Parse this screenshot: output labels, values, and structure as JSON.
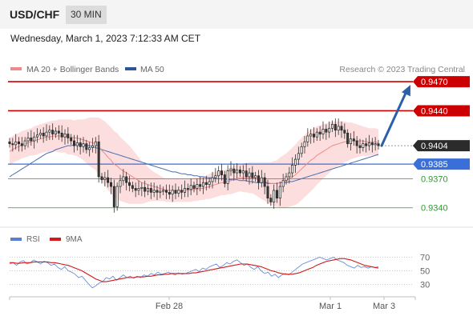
{
  "header": {
    "pair": "USD/CHF",
    "timeframe": "30 MIN"
  },
  "timestamp": "Wednesday, March 1, 2023 7:12:33 AM CET",
  "legend": {
    "ma20_label": "MA 20 + Bollinger Bands",
    "ma50_label": "MA 50",
    "credit": "Research © 2023 Trading Central",
    "rsi_label": "RSI",
    "rsi_ma_label": "9MA"
  },
  "colors": {
    "resistance": "#cc0000",
    "support": "#2e9b2e",
    "pivot": "#3a6fd8",
    "price_tag": "#2b2b2b",
    "bands": "#fbd3d3",
    "ma20": "#f08a8a",
    "ma50": "#4a6fb0",
    "arrow": "#2b5fa8",
    "candle_up": "#2a2a2a",
    "candle_down": "#3a3a3a",
    "rsi": "#6b8fd6",
    "rsi_ma": "#d11a1a"
  },
  "chart_data": [
    {
      "type": "candlestick",
      "title": "USD/CHF",
      "timeframe": "30 MIN",
      "x_tick_labels": [
        "Feb 28",
        "Mar 1",
        "Mar 3"
      ],
      "ylim": [
        0.932,
        0.9475
      ],
      "levels": [
        {
          "value": 0.947,
          "label": "0.9470",
          "kind": "resistance"
        },
        {
          "value": 0.944,
          "label": "0.9440",
          "kind": "resistance"
        },
        {
          "value": 0.9404,
          "label": "0.9404",
          "kind": "last_price"
        },
        {
          "value": 0.9385,
          "label": "0.9385",
          "kind": "pivot"
        },
        {
          "value": 0.937,
          "label": "0.9370",
          "kind": "support"
        },
        {
          "value": 0.934,
          "label": "0.9340",
          "kind": "support"
        }
      ],
      "closes": [
        0.9406,
        0.9405,
        0.9408,
        0.9406,
        0.9404,
        0.9409,
        0.9412,
        0.9409,
        0.9413,
        0.9415,
        0.9417,
        0.9414,
        0.9418,
        0.942,
        0.9416,
        0.9419,
        0.9417,
        0.9413,
        0.9416,
        0.9412,
        0.9409,
        0.9404,
        0.9407,
        0.9403,
        0.9406,
        0.94,
        0.9402,
        0.9404,
        0.9408,
        0.9372,
        0.9369,
        0.9371,
        0.9366,
        0.9362,
        0.9341,
        0.9362,
        0.9368,
        0.9372,
        0.9366,
        0.9363,
        0.936,
        0.9358,
        0.936,
        0.9361,
        0.9357,
        0.936,
        0.9356,
        0.9358,
        0.9356,
        0.9357,
        0.9358,
        0.9356,
        0.9354,
        0.9358,
        0.9355,
        0.9358,
        0.9356,
        0.936,
        0.9359,
        0.9363,
        0.936,
        0.9364,
        0.9362,
        0.9366,
        0.9364,
        0.9367,
        0.9371,
        0.9373,
        0.9378,
        0.9374,
        0.9365,
        0.9378,
        0.938,
        0.9376,
        0.9379,
        0.9376,
        0.9378,
        0.9372,
        0.9376,
        0.9371,
        0.9373,
        0.9366,
        0.9371,
        0.9362,
        0.935,
        0.9346,
        0.9358,
        0.935,
        0.9362,
        0.9368,
        0.9372,
        0.9376,
        0.9384,
        0.939,
        0.9396,
        0.9403,
        0.9408,
        0.9414,
        0.9416,
        0.9413,
        0.9418,
        0.9416,
        0.9421,
        0.9418,
        0.9422,
        0.9426,
        0.942,
        0.9424,
        0.942,
        0.9417,
        0.9406,
        0.9411,
        0.9409,
        0.9404,
        0.9402,
        0.9406,
        0.9404,
        0.9407,
        0.9405,
        0.9406,
        0.9404
      ],
      "ma20": [
        0.9398,
        0.94,
        0.9402,
        0.9403,
        0.9405,
        0.9406,
        0.9407,
        0.9408,
        0.9409,
        0.941,
        0.9411,
        0.9412,
        0.9413,
        0.9413,
        0.9414,
        0.9414,
        0.9414,
        0.9414,
        0.9414,
        0.9413,
        0.9413,
        0.9412,
        0.9412,
        0.9411,
        0.941,
        0.9409,
        0.9408,
        0.9407,
        0.9406,
        0.9403,
        0.9399,
        0.9396,
        0.9392,
        0.9389,
        0.9385,
        0.9383,
        0.938,
        0.9378,
        0.9376,
        0.9374,
        0.9372,
        0.937,
        0.9368,
        0.9366,
        0.9365,
        0.9364,
        0.9363,
        0.9362,
        0.9361,
        0.936,
        0.9359,
        0.9358,
        0.9358,
        0.9358,
        0.9358,
        0.9358,
        0.9358,
        0.9358,
        0.9358,
        0.9358,
        0.9359,
        0.9359,
        0.936,
        0.936,
        0.9361,
        0.9362,
        0.9363,
        0.9364,
        0.9365,
        0.9366,
        0.9366,
        0.9367,
        0.9368,
        0.9369,
        0.937,
        0.9371,
        0.9371,
        0.9371,
        0.9371,
        0.9371,
        0.937,
        0.9369,
        0.9368,
        0.9367,
        0.9366,
        0.9365,
        0.9365,
        0.9365,
        0.9366,
        0.9367,
        0.9368,
        0.937,
        0.9372,
        0.9374,
        0.9377,
        0.938,
        0.9383,
        0.9386,
        0.9389,
        0.9391,
        0.9394,
        0.9396,
        0.9398,
        0.94,
        0.9402,
        0.9404,
        0.9405,
        0.9406,
        0.9407,
        0.9408,
        0.9408,
        0.9409,
        0.9409,
        0.9409,
        0.9409,
        0.9409,
        0.9408,
        0.9408,
        0.9408,
        0.9408,
        0.9407
      ],
      "ma50": [
        0.9372,
        0.9374,
        0.9376,
        0.9378,
        0.938,
        0.9382,
        0.9384,
        0.9386,
        0.9388,
        0.939,
        0.9392,
        0.9394,
        0.9396,
        0.9397,
        0.9398,
        0.94,
        0.9401,
        0.9402,
        0.9403,
        0.9404,
        0.9404,
        0.9405,
        0.9405,
        0.9405,
        0.9405,
        0.9404,
        0.9404,
        0.9403,
        0.9402,
        0.9401,
        0.94,
        0.9399,
        0.9398,
        0.9397,
        0.9396,
        0.9395,
        0.9394,
        0.9393,
        0.9392,
        0.9391,
        0.939,
        0.9389,
        0.9388,
        0.9387,
        0.9386,
        0.9385,
        0.9384,
        0.9383,
        0.9382,
        0.9381,
        0.938,
        0.9379,
        0.9378,
        0.9377,
        0.9377,
        0.9376,
        0.9375,
        0.9375,
        0.9374,
        0.9374,
        0.9373,
        0.9373,
        0.9372,
        0.9372,
        0.9371,
        0.9371,
        0.9371,
        0.937,
        0.937,
        0.937,
        0.937,
        0.9369,
        0.9369,
        0.9369,
        0.9369,
        0.9368,
        0.9368,
        0.9368,
        0.9367,
        0.9367,
        0.9366,
        0.9366,
        0.9366,
        0.9366,
        0.9365,
        0.9365,
        0.9365,
        0.9365,
        0.9366,
        0.9366,
        0.9366,
        0.9367,
        0.9367,
        0.9368,
        0.9369,
        0.937,
        0.9371,
        0.9372,
        0.9373,
        0.9374,
        0.9375,
        0.9376,
        0.9377,
        0.9378,
        0.9379,
        0.938,
        0.9381,
        0.9382,
        0.9383,
        0.9384,
        0.9385,
        0.9386,
        0.9387,
        0.9388,
        0.9389,
        0.939,
        0.9391,
        0.9392,
        0.9393,
        0.9394,
        0.9395
      ],
      "band_half_width": [
        0.0014,
        0.0014,
        0.0014,
        0.0014,
        0.0014,
        0.0014,
        0.0014,
        0.0014,
        0.0015,
        0.0015,
        0.0015,
        0.0015,
        0.0015,
        0.0016,
        0.0016,
        0.0016,
        0.0017,
        0.0017,
        0.0017,
        0.0018,
        0.0018,
        0.0018,
        0.0019,
        0.002,
        0.0021,
        0.0023,
        0.0025,
        0.0026,
        0.0027,
        0.003,
        0.0032,
        0.0033,
        0.0034,
        0.0034,
        0.0034,
        0.0034,
        0.0033,
        0.0032,
        0.0031,
        0.003,
        0.0028,
        0.0026,
        0.0024,
        0.0022,
        0.002,
        0.0018,
        0.0016,
        0.0015,
        0.0014,
        0.0013,
        0.0012,
        0.0012,
        0.0012,
        0.0012,
        0.0012,
        0.0012,
        0.0012,
        0.0012,
        0.0012,
        0.0012,
        0.0012,
        0.0012,
        0.0012,
        0.0012,
        0.0012,
        0.0013,
        0.0013,
        0.0013,
        0.0013,
        0.0013,
        0.0013,
        0.0013,
        0.0014,
        0.0014,
        0.0014,
        0.0014,
        0.0015,
        0.0015,
        0.0016,
        0.0016,
        0.0017,
        0.0018,
        0.0019,
        0.002,
        0.0021,
        0.0022,
        0.0023,
        0.0024,
        0.0026,
        0.0027,
        0.0028,
        0.0029,
        0.003,
        0.0031,
        0.0032,
        0.0032,
        0.0032,
        0.0032,
        0.0032,
        0.0031,
        0.003,
        0.0029,
        0.0028,
        0.0027,
        0.0026,
        0.0025,
        0.0024,
        0.0023,
        0.0022,
        0.0021,
        0.002,
        0.0019,
        0.0018,
        0.0017,
        0.0016,
        0.0015,
        0.0015,
        0.0014,
        0.0014,
        0.0014,
        0.0014
      ],
      "projection": {
        "from": 0.9404,
        "to": 0.947
      }
    },
    {
      "type": "line",
      "title": "RSI",
      "ylim": [
        20,
        80
      ],
      "y_ticks": [
        70,
        50,
        30
      ],
      "series": [
        {
          "name": "RSI",
          "values": [
            60,
            62,
            58,
            63,
            65,
            60,
            62,
            66,
            63,
            60,
            64,
            62,
            58,
            60,
            55,
            52,
            56,
            50,
            48,
            45,
            40,
            42,
            36,
            30,
            25,
            28,
            32,
            34,
            40,
            38,
            42,
            36,
            40,
            44,
            40,
            42,
            39,
            42,
            40,
            44,
            42,
            46,
            44,
            48,
            45,
            46,
            48,
            46,
            44,
            47,
            45,
            46,
            48,
            50,
            52,
            49,
            54,
            52,
            56,
            58,
            60,
            55,
            58,
            62,
            60,
            64,
            66,
            62,
            58,
            60,
            55,
            52,
            56,
            50,
            46,
            48,
            42,
            45,
            40,
            44,
            46,
            44,
            48,
            52,
            56,
            60,
            62,
            64,
            66,
            68,
            70,
            68,
            66,
            68,
            70,
            66,
            64,
            62,
            58,
            56,
            54,
            58,
            55,
            56,
            54,
            56,
            55,
            56
          ]
        },
        {
          "name": "9MA",
          "values": [
            62,
            62,
            61,
            61,
            62,
            62,
            62,
            63,
            63,
            63,
            63,
            63,
            62,
            62,
            61,
            60,
            59,
            58,
            56,
            54,
            52,
            50,
            47,
            44,
            41,
            38,
            36,
            34,
            34,
            35,
            36,
            37,
            38,
            39,
            40,
            40,
            40,
            41,
            41,
            41,
            42,
            42,
            43,
            44,
            44,
            45,
            45,
            46,
            46,
            46,
            46,
            46,
            46,
            47,
            47,
            48,
            49,
            50,
            51,
            52,
            53,
            54,
            55,
            56,
            57,
            58,
            59,
            60,
            60,
            60,
            59,
            58,
            57,
            56,
            54,
            52,
            50,
            49,
            47,
            46,
            45,
            45,
            45,
            46,
            47,
            49,
            51,
            53,
            55,
            58,
            60,
            62,
            64,
            65,
            66,
            67,
            68,
            68,
            67,
            66,
            64,
            62,
            60,
            58,
            57,
            56,
            55,
            54
          ]
        }
      ]
    }
  ]
}
